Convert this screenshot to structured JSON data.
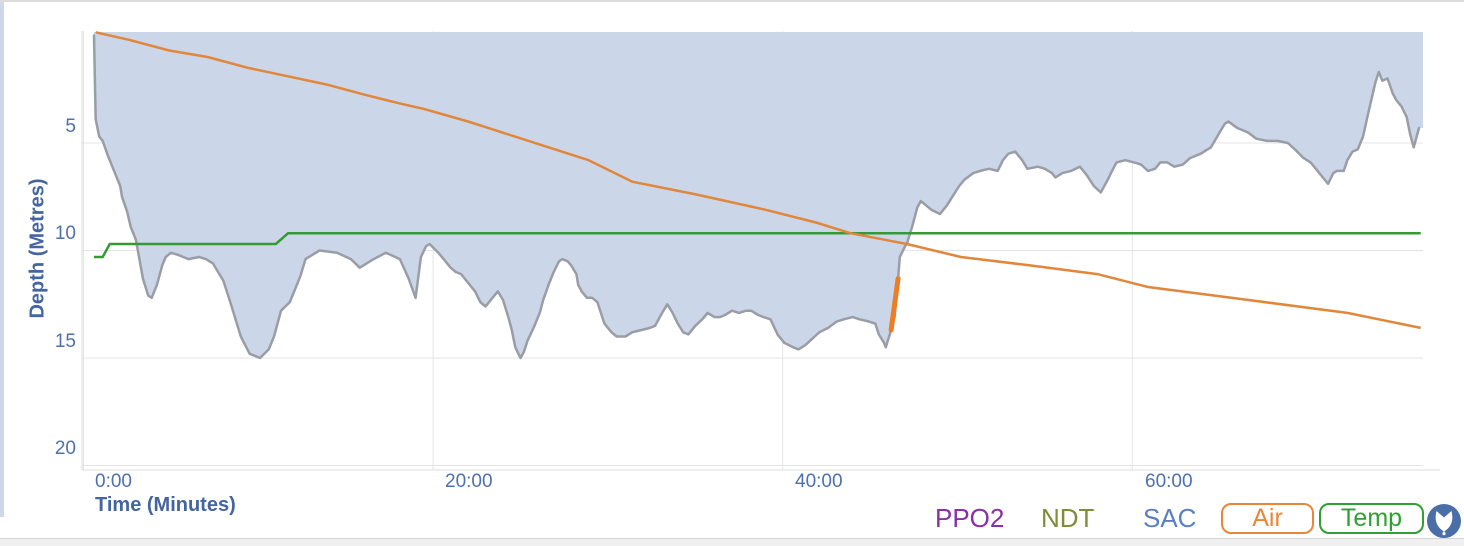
{
  "chart": {
    "y_axis": {
      "title": "Depth (Metres)",
      "tick_labels": [
        "5",
        "10",
        "15",
        "20"
      ]
    },
    "x_axis": {
      "title": "Time (Minutes)",
      "tick_labels": [
        "0:00",
        "20:00",
        "40:00",
        "60:00"
      ]
    }
  },
  "legend": {
    "items": [
      {
        "label": "PPO2",
        "color": "#8a2fa8",
        "kind": "text-toggle"
      },
      {
        "label": "NDT",
        "color": "#7f8d3b",
        "kind": "text-toggle"
      },
      {
        "label": "SAC",
        "color": "#5b7fc4",
        "kind": "text-toggle"
      },
      {
        "label": "Air",
        "color": "#e8873a",
        "kind": "button-toggle"
      },
      {
        "label": "Temp",
        "color": "#2fa033",
        "kind": "button-toggle"
      }
    ],
    "shield_icon_color": "#4a6fa8"
  },
  "chart_data": {
    "type": "area",
    "title": "",
    "xlabel": "Time (Minutes)",
    "ylabel": "Depth (Metres)",
    "x_unit": "minutes",
    "y_unit": "metres (depth axis inverted, down = deeper)",
    "xlim": [
      0,
      76.5
    ],
    "ylim_depth": [
      0,
      20.2
    ],
    "x_tick_minutes": [
      0,
      20,
      40,
      60
    ],
    "x_tick_labels": [
      "0:00",
      "20:00",
      "40:00",
      "60:00"
    ],
    "y_ticks_metres": [
      5,
      10,
      15,
      20
    ],
    "grid": true,
    "legend_position": "bottom-right",
    "colors": {
      "depth_fill": "#ccd6e9",
      "depth_line": "#999da6",
      "air_line": "#e0873c",
      "temp_line": "#339a35",
      "fast_ascent": "#ee7e26",
      "gridline": "#e4e4e6",
      "axis_line": "#dcdcdc"
    },
    "series": [
      {
        "name": "depth_profile",
        "axis": "depth_metres",
        "points": [
          [
            0.6,
            0
          ],
          [
            0.65,
            2.1
          ],
          [
            0.7,
            3.9
          ],
          [
            0.9,
            4.7
          ],
          [
            1.1,
            4.9
          ],
          [
            1.4,
            5.6
          ],
          [
            1.7,
            6.2
          ],
          [
            2.1,
            7.0
          ],
          [
            2.2,
            7.5
          ],
          [
            2.5,
            8.2
          ],
          [
            2.7,
            8.9
          ],
          [
            3.0,
            9.5
          ],
          [
            3.2,
            10.4
          ],
          [
            3.4,
            11.3
          ],
          [
            3.7,
            12.1
          ],
          [
            3.9,
            12.2
          ],
          [
            4.2,
            11.6
          ],
          [
            4.5,
            10.7
          ],
          [
            4.7,
            10.3
          ],
          [
            5.0,
            10.1
          ],
          [
            5.4,
            10.2
          ],
          [
            6.0,
            10.4
          ],
          [
            6.6,
            10.3
          ],
          [
            7.0,
            10.4
          ],
          [
            7.4,
            10.6
          ],
          [
            8.0,
            11.4
          ],
          [
            8.4,
            12.4
          ],
          [
            9.0,
            14.0
          ],
          [
            9.5,
            14.8
          ],
          [
            10.1,
            15.0
          ],
          [
            10.6,
            14.6
          ],
          [
            10.9,
            14.0
          ],
          [
            11.3,
            12.8
          ],
          [
            11.8,
            12.4
          ],
          [
            12.4,
            11.2
          ],
          [
            12.7,
            10.4
          ],
          [
            13.5,
            10.0
          ],
          [
            14.5,
            10.1
          ],
          [
            15.3,
            10.4
          ],
          [
            15.8,
            10.8
          ],
          [
            16.6,
            10.4
          ],
          [
            17.3,
            10.1
          ],
          [
            18.1,
            10.4
          ],
          [
            18.6,
            11.3
          ],
          [
            19.0,
            12.2
          ],
          [
            19.3,
            10.3
          ],
          [
            19.6,
            9.8
          ],
          [
            19.8,
            9.7
          ],
          [
            20.3,
            10.1
          ],
          [
            20.6,
            10.4
          ],
          [
            21.0,
            10.8
          ],
          [
            21.3,
            11.0
          ],
          [
            21.6,
            11.1
          ],
          [
            22.0,
            11.5
          ],
          [
            22.4,
            11.9
          ],
          [
            22.7,
            12.4
          ],
          [
            23.0,
            12.6
          ],
          [
            23.3,
            12.3
          ],
          [
            23.7,
            11.9
          ],
          [
            24.0,
            12.3
          ],
          [
            24.3,
            13.1
          ],
          [
            24.5,
            13.7
          ],
          [
            24.7,
            14.5
          ],
          [
            25.0,
            15.0
          ],
          [
            25.2,
            14.7
          ],
          [
            25.4,
            14.2
          ],
          [
            25.8,
            13.5
          ],
          [
            26.1,
            12.9
          ],
          [
            26.3,
            12.3
          ],
          [
            26.6,
            11.6
          ],
          [
            26.9,
            11.0
          ],
          [
            27.2,
            10.5
          ],
          [
            27.4,
            10.4
          ],
          [
            27.7,
            10.5
          ],
          [
            27.9,
            10.7
          ],
          [
            28.2,
            11.1
          ],
          [
            28.3,
            11.6
          ],
          [
            28.5,
            11.9
          ],
          [
            28.8,
            12.2
          ],
          [
            29.1,
            12.2
          ],
          [
            29.4,
            12.4
          ],
          [
            29.8,
            13.4
          ],
          [
            30.2,
            13.8
          ],
          [
            30.5,
            14.0
          ],
          [
            31.0,
            14.0
          ],
          [
            31.4,
            13.8
          ],
          [
            31.9,
            13.7
          ],
          [
            32.4,
            13.6
          ],
          [
            32.7,
            13.5
          ],
          [
            33.1,
            12.9
          ],
          [
            33.4,
            12.5
          ],
          [
            33.7,
            12.9
          ],
          [
            34.0,
            13.4
          ],
          [
            34.3,
            13.8
          ],
          [
            34.6,
            13.9
          ],
          [
            35.0,
            13.5
          ],
          [
            35.4,
            13.2
          ],
          [
            35.7,
            12.9
          ],
          [
            36.1,
            13.1
          ],
          [
            36.4,
            13.1
          ],
          [
            36.7,
            13.0
          ],
          [
            37.1,
            12.8
          ],
          [
            37.5,
            12.9
          ],
          [
            37.9,
            12.8
          ],
          [
            38.2,
            12.8
          ],
          [
            38.6,
            13.0
          ],
          [
            38.9,
            13.1
          ],
          [
            39.3,
            13.2
          ],
          [
            39.7,
            13.9
          ],
          [
            40.1,
            14.3
          ],
          [
            40.6,
            14.5
          ],
          [
            40.9,
            14.6
          ],
          [
            41.3,
            14.4
          ],
          [
            41.7,
            14.1
          ],
          [
            42.1,
            13.8
          ],
          [
            42.6,
            13.6
          ],
          [
            43.1,
            13.3
          ],
          [
            43.5,
            13.2
          ],
          [
            44.0,
            13.1
          ],
          [
            44.4,
            13.2
          ],
          [
            44.9,
            13.3
          ],
          [
            45.3,
            13.4
          ],
          [
            45.5,
            13.9
          ],
          [
            45.8,
            14.3
          ],
          [
            45.9,
            14.5
          ],
          [
            46.2,
            13.7
          ],
          [
            46.4,
            13.1
          ],
          [
            46.6,
            11.3
          ],
          [
            46.7,
            10.3
          ],
          [
            47.0,
            9.8
          ],
          [
            47.1,
            9.7
          ],
          [
            47.4,
            8.9
          ],
          [
            47.7,
            8.0
          ],
          [
            47.9,
            7.7
          ],
          [
            48.2,
            7.9
          ],
          [
            48.5,
            8.1
          ],
          [
            49.0,
            8.3
          ],
          [
            49.4,
            7.9
          ],
          [
            49.7,
            7.5
          ],
          [
            50.1,
            7.0
          ],
          [
            50.4,
            6.7
          ],
          [
            50.9,
            6.4
          ],
          [
            51.3,
            6.3
          ],
          [
            51.8,
            6.2
          ],
          [
            52.3,
            6.3
          ],
          [
            52.6,
            5.8
          ],
          [
            52.9,
            5.5
          ],
          [
            53.3,
            5.4
          ],
          [
            53.7,
            5.8
          ],
          [
            54.0,
            6.2
          ],
          [
            54.6,
            6.1
          ],
          [
            55.0,
            6.2
          ],
          [
            55.4,
            6.4
          ],
          [
            55.6,
            6.6
          ],
          [
            56.0,
            6.4
          ],
          [
            56.5,
            6.3
          ],
          [
            57.0,
            6.1
          ],
          [
            57.4,
            6.5
          ],
          [
            57.8,
            7.0
          ],
          [
            58.2,
            7.3
          ],
          [
            58.6,
            6.7
          ],
          [
            58.9,
            6.2
          ],
          [
            59.1,
            5.9
          ],
          [
            59.6,
            5.8
          ],
          [
            60.1,
            5.9
          ],
          [
            60.5,
            6.0
          ],
          [
            60.9,
            6.3
          ],
          [
            61.3,
            6.2
          ],
          [
            61.6,
            5.9
          ],
          [
            62.0,
            5.9
          ],
          [
            62.4,
            6.1
          ],
          [
            62.9,
            6.0
          ],
          [
            63.3,
            5.7
          ],
          [
            63.9,
            5.5
          ],
          [
            64.5,
            5.2
          ],
          [
            65.0,
            4.5
          ],
          [
            65.3,
            4.1
          ],
          [
            65.5,
            4.0
          ],
          [
            66.0,
            4.3
          ],
          [
            66.6,
            4.5
          ],
          [
            67.1,
            4.8
          ],
          [
            67.7,
            4.9
          ],
          [
            68.3,
            4.9
          ],
          [
            68.9,
            5.0
          ],
          [
            69.3,
            5.3
          ],
          [
            69.8,
            5.7
          ],
          [
            70.2,
            5.9
          ],
          [
            70.6,
            6.3
          ],
          [
            71.0,
            6.7
          ],
          [
            71.2,
            6.9
          ],
          [
            71.5,
            6.4
          ],
          [
            71.7,
            6.3
          ],
          [
            72.1,
            6.3
          ],
          [
            72.3,
            5.8
          ],
          [
            72.6,
            5.4
          ],
          [
            72.9,
            5.3
          ],
          [
            73.2,
            4.7
          ],
          [
            73.5,
            3.6
          ],
          [
            73.9,
            2.2
          ],
          [
            74.1,
            1.7
          ],
          [
            74.3,
            2.1
          ],
          [
            74.6,
            2.0
          ],
          [
            74.9,
            2.7
          ],
          [
            75.1,
            3.0
          ],
          [
            75.4,
            3.3
          ],
          [
            75.7,
            3.8
          ],
          [
            75.9,
            4.6
          ],
          [
            76.1,
            5.2
          ],
          [
            76.2,
            4.9
          ],
          [
            76.4,
            4.3
          ]
        ]
      },
      {
        "name": "air_pressure",
        "axis": "depth-equivalent (no pressure scale shown on screen)",
        "points": [
          [
            0.7,
            -0.15
          ],
          [
            2.6,
            0.2
          ],
          [
            4.9,
            0.7
          ],
          [
            7.1,
            1.0
          ],
          [
            9.4,
            1.5
          ],
          [
            11.7,
            1.9
          ],
          [
            14.0,
            2.3
          ],
          [
            16.3,
            2.8
          ],
          [
            18.3,
            3.2
          ],
          [
            19.4,
            3.4
          ],
          [
            22.0,
            4.0
          ],
          [
            24.3,
            4.6
          ],
          [
            26.6,
            5.2
          ],
          [
            28.9,
            5.8
          ],
          [
            31.4,
            6.8
          ],
          [
            35.1,
            7.4
          ],
          [
            39.0,
            8.1
          ],
          [
            41.9,
            8.7
          ],
          [
            43.9,
            9.2
          ],
          [
            47.1,
            9.7
          ],
          [
            50.2,
            10.3
          ],
          [
            54.2,
            10.7
          ],
          [
            58.0,
            11.1
          ],
          [
            60.9,
            11.7
          ],
          [
            66.6,
            12.3
          ],
          [
            72.3,
            12.9
          ],
          [
            76.5,
            13.6
          ]
        ]
      },
      {
        "name": "temperature",
        "axis": "depth-equivalent (no temperature scale shown on screen)",
        "points": [
          [
            0.6,
            10.3
          ],
          [
            1.1,
            10.3
          ],
          [
            1.5,
            9.7
          ],
          [
            11.0,
            9.7
          ],
          [
            11.7,
            9.2
          ],
          [
            76.5,
            9.2
          ]
        ]
      },
      {
        "name": "fast_ascent_marker",
        "axis": "depth_metres",
        "points": [
          [
            46.2,
            13.7
          ],
          [
            46.6,
            11.3
          ]
        ]
      }
    ]
  }
}
